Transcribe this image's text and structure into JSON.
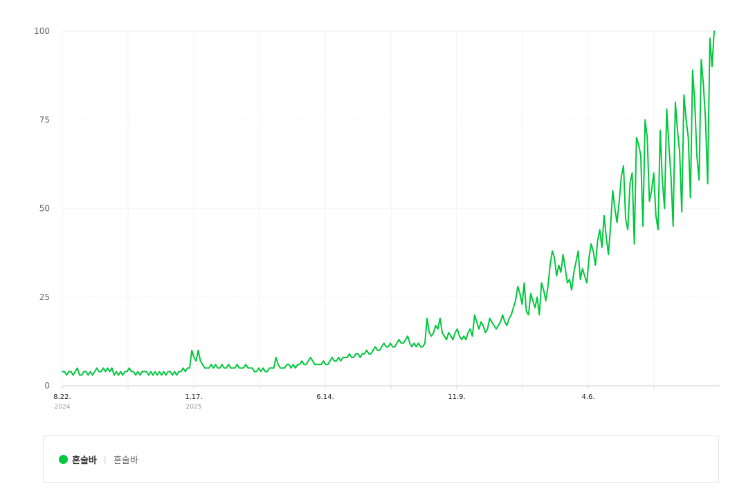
{
  "chart_data": {
    "type": "line",
    "x_ticks": [
      {
        "label": "8.22.",
        "sublabel": "2024"
      },
      {
        "label": "1.17.",
        "sublabel": "2025"
      },
      {
        "label": "6.14.",
        "sublabel": ""
      },
      {
        "label": "11.9.",
        "sublabel": ""
      },
      {
        "label": "4.6.",
        "sublabel": ""
      }
    ],
    "y_ticks": [
      "0",
      "25",
      "50",
      "75",
      "100"
    ],
    "ylim": [
      0,
      100
    ],
    "grid": true,
    "series": [
      {
        "name": "혼술바",
        "color": "#00c73c",
        "values": [
          4,
          4,
          3,
          4,
          4,
          3,
          4,
          5,
          3,
          3,
          4,
          4,
          3,
          4,
          3,
          4,
          5,
          4,
          4,
          5,
          4,
          5,
          4,
          5,
          3,
          4,
          3,
          4,
          3,
          4,
          4,
          5,
          4,
          4,
          3,
          4,
          3,
          4,
          4,
          4,
          3,
          4,
          3,
          4,
          3,
          4,
          3,
          4,
          3,
          4,
          4,
          3,
          4,
          3,
          4,
          4,
          5,
          4,
          5,
          5,
          10,
          8,
          7,
          10,
          7,
          6,
          5,
          5,
          5,
          6,
          5,
          6,
          5,
          5,
          6,
          5,
          5,
          6,
          5,
          5,
          5,
          6,
          5,
          5,
          5,
          6,
          5,
          5,
          5,
          4,
          4,
          5,
          4,
          5,
          4,
          4,
          5,
          5,
          5,
          8,
          6,
          5,
          5,
          5,
          6,
          6,
          5,
          6,
          5,
          6,
          6,
          7,
          6,
          6,
          7,
          8,
          7,
          6,
          6,
          6,
          6,
          7,
          6,
          6,
          7,
          8,
          7,
          7,
          8,
          7,
          8,
          8,
          8,
          9,
          8,
          8,
          9,
          9,
          8,
          9,
          9,
          10,
          9,
          9,
          10,
          11,
          10,
          10,
          11,
          12,
          11,
          11,
          12,
          11,
          11,
          12,
          13,
          12,
          12,
          13,
          14,
          12,
          11,
          12,
          11,
          12,
          11,
          11,
          12,
          19,
          15,
          14,
          15,
          17,
          16,
          19,
          15,
          14,
          13,
          15,
          14,
          13,
          15,
          16,
          14,
          13,
          14,
          13,
          15,
          16,
          14,
          20,
          18,
          16,
          18,
          17,
          15,
          16,
          19,
          18,
          17,
          16,
          17,
          18,
          20,
          18,
          17,
          19,
          20,
          22,
          24,
          28,
          26,
          23,
          29,
          21,
          20,
          26,
          24,
          22,
          25,
          20,
          29,
          27,
          24,
          28,
          34,
          38,
          36,
          31,
          34,
          32,
          37,
          33,
          29,
          30,
          27,
          32,
          35,
          38,
          30,
          33,
          31,
          29,
          36,
          40,
          38,
          34,
          41,
          44,
          39,
          48,
          42,
          37,
          45,
          55,
          50,
          46,
          52,
          59,
          62,
          47,
          44,
          57,
          60,
          40,
          70,
          68,
          65,
          45,
          75,
          70,
          52,
          55,
          60,
          48,
          44,
          72,
          58,
          50,
          78,
          68,
          59,
          45,
          80,
          72,
          66,
          49,
          82,
          75,
          70,
          53,
          89,
          80,
          65,
          58,
          92,
          85,
          75,
          57,
          98,
          90,
          100
        ]
      }
    ]
  },
  "legend": {
    "entries": [
      {
        "name": "혼술바",
        "keyword": "혼술바",
        "color": "#00c73c",
        "separator": "|"
      }
    ]
  }
}
